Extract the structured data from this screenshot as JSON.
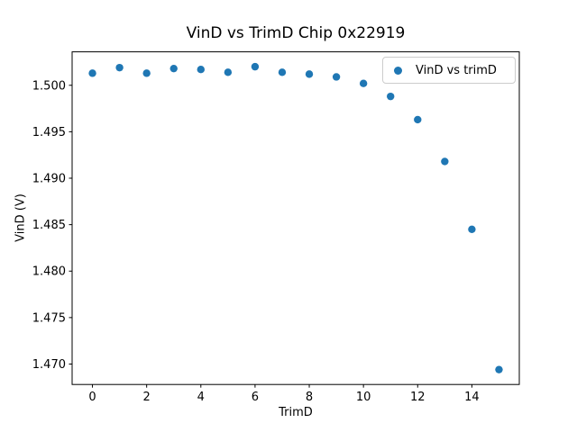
{
  "figure": {
    "background": "#ffffff",
    "text_color": "#000000",
    "spine_color": "#000000",
    "legend_border_color": "#cccccc"
  },
  "chart_data": {
    "type": "scatter",
    "title": "VinD vs TrimD Chip 0x22919",
    "xlabel": "TrimD",
    "ylabel": "VinD (V)",
    "series": [
      {
        "name": "VinD vs trimD",
        "color": "#1f77b4",
        "x": [
          0,
          1,
          2,
          3,
          4,
          5,
          6,
          7,
          8,
          9,
          10,
          11,
          12,
          13,
          14,
          15
        ],
        "y": [
          1.5013,
          1.5019,
          1.5013,
          1.5018,
          1.5017,
          1.5014,
          1.502,
          1.5014,
          1.5012,
          1.5009,
          1.5002,
          1.4988,
          1.4963,
          1.4918,
          1.4845,
          1.4694
        ]
      }
    ],
    "xlim": [
      -0.75,
      15.75
    ],
    "ylim": [
      1.4678,
      1.5036
    ],
    "xticks": {
      "values": [
        0,
        2,
        4,
        6,
        8,
        10,
        12,
        14
      ],
      "labels": [
        "0",
        "2",
        "4",
        "6",
        "8",
        "10",
        "12",
        "14"
      ]
    },
    "yticks": {
      "values": [
        1.47,
        1.475,
        1.48,
        1.485,
        1.49,
        1.495,
        1.5
      ],
      "labels": [
        "1.470",
        "1.475",
        "1.480",
        "1.485",
        "1.490",
        "1.495",
        "1.500"
      ]
    },
    "legend": {
      "label": "VinD vs trimD",
      "position": "upper right"
    },
    "grid": false
  }
}
